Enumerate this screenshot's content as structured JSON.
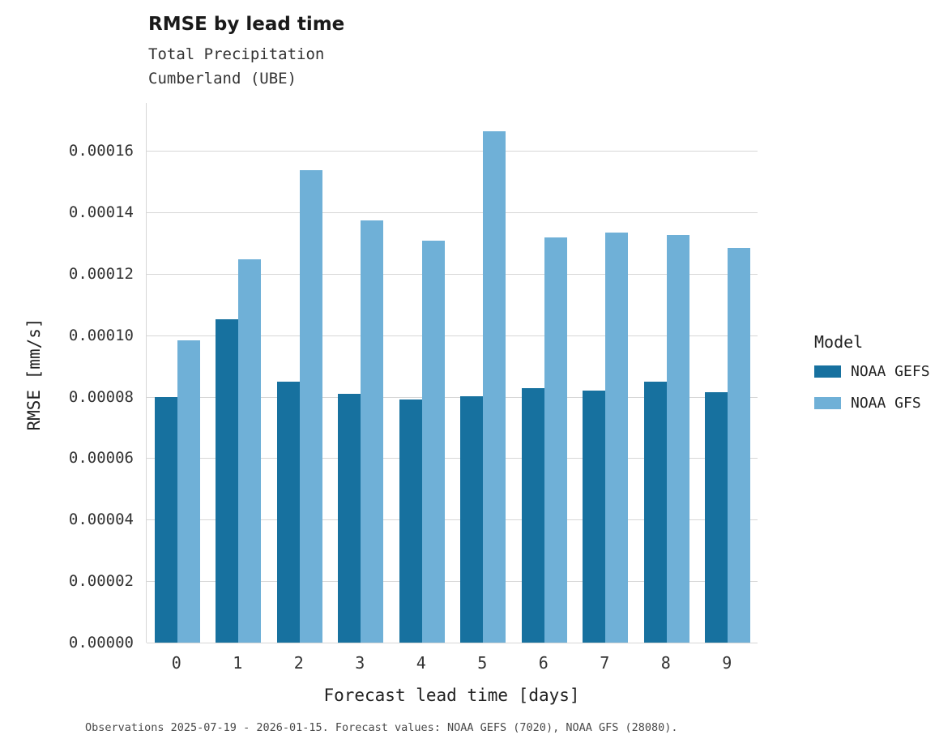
{
  "title": "RMSE by lead time",
  "subtitle": "Total Precipitation\nCumberland (UBE)",
  "caption": "Observations 2025-07-19 - 2026-01-15. Forecast values: NOAA GEFS (7020), NOAA GFS (28080).",
  "legend": {
    "title": "Model",
    "entries": [
      {
        "label": "NOAA GEFS",
        "color": "#17719f"
      },
      {
        "label": "NOAA GFS",
        "color": "#6fb0d7"
      }
    ]
  },
  "chart_data": {
    "type": "bar",
    "title": "RMSE by lead time",
    "subtitle": "Total Precipitation Cumberland (UBE)",
    "xlabel": "Forecast lead time [days]",
    "ylabel": "RMSE [mm/s]",
    "categories": [
      "0",
      "1",
      "2",
      "3",
      "4",
      "5",
      "6",
      "7",
      "8",
      "9"
    ],
    "series": [
      {
        "name": "NOAA GEFS",
        "color": "#17719f",
        "values": [
          8e-05,
          0.0001052,
          8.49e-05,
          8.09e-05,
          7.91e-05,
          8.01e-05,
          8.28e-05,
          8.2e-05,
          8.49e-05,
          8.14e-05
        ]
      },
      {
        "name": "NOAA GFS",
        "color": "#6fb0d7",
        "values": [
          9.83e-05,
          0.0001247,
          0.0001537,
          0.0001373,
          0.0001307,
          0.0001663,
          0.0001318,
          0.0001334,
          0.0001326,
          0.0001284
        ]
      }
    ],
    "ylim": [
      0,
      0.0001756
    ],
    "yticks": [
      0.0,
      2e-05,
      4e-05,
      6e-05,
      8e-05,
      0.0001,
      0.00012,
      0.00014,
      0.00016
    ],
    "ytick_labels": [
      "0.00000",
      "0.00002",
      "0.00004",
      "0.00006",
      "0.00008",
      "0.00010",
      "0.00012",
      "0.00014",
      "0.00016"
    ],
    "grid": true,
    "legend_position": "right",
    "legend_title": "Model"
  }
}
